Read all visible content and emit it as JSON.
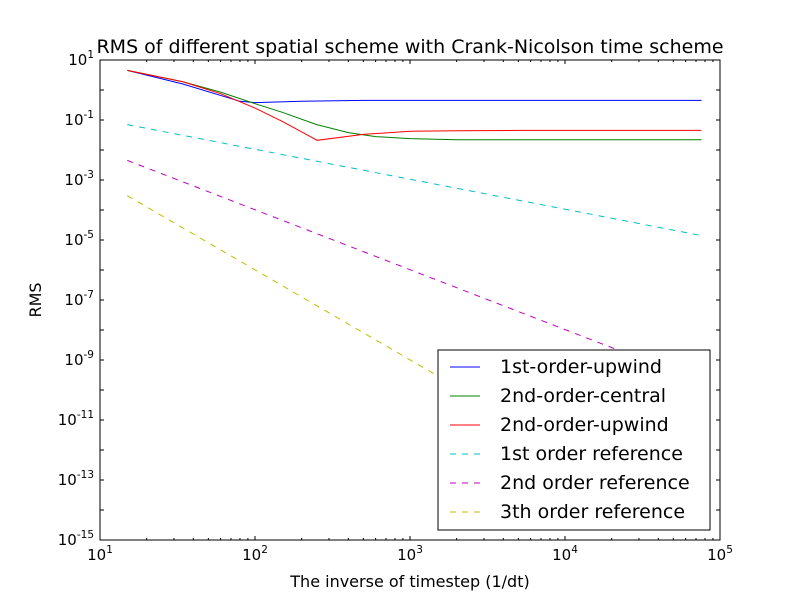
{
  "chart_data": {
    "type": "line",
    "title": "RMS of different spatial scheme with Crank-Nicolson time scheme",
    "xlabel": "The inverse of timestep (1/dt)",
    "ylabel": "RMS",
    "x_scale": "log",
    "y_scale": "log",
    "xlim": [
      10,
      100000
    ],
    "ylim": [
      1e-15,
      10
    ],
    "x_ticks": [
      {
        "value": 10,
        "base": "10",
        "exp": "1"
      },
      {
        "value": 100,
        "base": "10",
        "exp": "2"
      },
      {
        "value": 1000,
        "base": "10",
        "exp": "3"
      },
      {
        "value": 10000,
        "base": "10",
        "exp": "4"
      },
      {
        "value": 100000,
        "base": "10",
        "exp": "5"
      }
    ],
    "y_ticks": [
      {
        "value": 10,
        "base": "10",
        "exp": "1"
      },
      {
        "value": 0.1,
        "base": "10",
        "exp": "-1"
      },
      {
        "value": 0.001,
        "base": "10",
        "exp": "-3"
      },
      {
        "value": 1e-05,
        "base": "10",
        "exp": "-5"
      },
      {
        "value": 1e-07,
        "base": "10",
        "exp": "-7"
      },
      {
        "value": 1e-09,
        "base": "10",
        "exp": "-9"
      },
      {
        "value": 1e-11,
        "base": "10",
        "exp": "-11"
      },
      {
        "value": 1e-13,
        "base": "10",
        "exp": "-13"
      },
      {
        "value": 1e-15,
        "base": "10",
        "exp": "-15"
      }
    ],
    "grid": false,
    "legend_position": "lower-right",
    "series": [
      {
        "name": "1st-order-upwind",
        "color": "#0000ff",
        "style": "solid",
        "x": [
          15,
          34,
          80,
          100,
          200,
          500,
          1000,
          5000,
          20000,
          76000
        ],
        "y": [
          4.5,
          1.6,
          0.42,
          0.38,
          0.42,
          0.45,
          0.45,
          0.45,
          0.45,
          0.45
        ]
      },
      {
        "name": "2nd-order-central",
        "color": "#008000",
        "style": "solid",
        "x": [
          15,
          34,
          60,
          100,
          150,
          250,
          400,
          600,
          1000,
          2000,
          5000,
          20000,
          76000
        ],
        "y": [
          4.5,
          1.9,
          0.85,
          0.35,
          0.18,
          0.07,
          0.038,
          0.028,
          0.024,
          0.022,
          0.022,
          0.022,
          0.022
        ]
      },
      {
        "name": "2nd-order-upwind",
        "color": "#ff0000",
        "style": "solid",
        "x": [
          15,
          34,
          60,
          100,
          150,
          252,
          500,
          1000,
          2000,
          5000,
          20000,
          76000
        ],
        "y": [
          4.5,
          1.9,
          0.75,
          0.25,
          0.09,
          0.021,
          0.033,
          0.042,
          0.044,
          0.045,
          0.045,
          0.045
        ]
      },
      {
        "name": "1st order reference",
        "color": "#00bfbf",
        "style": "dashed",
        "x": [
          15,
          76000
        ],
        "y": [
          0.07,
          1.4e-05
        ]
      },
      {
        "name": "2nd order reference",
        "color": "#bf00bf",
        "style": "dashed",
        "x": [
          15,
          76000
        ],
        "y": [
          0.0045,
          1.8e-10
        ]
      },
      {
        "name": "3th order reference",
        "color": "#bfbf00",
        "style": "dashed",
        "x": [
          15,
          76000
        ],
        "y": [
          0.0003,
          2.3e-15
        ]
      }
    ]
  }
}
